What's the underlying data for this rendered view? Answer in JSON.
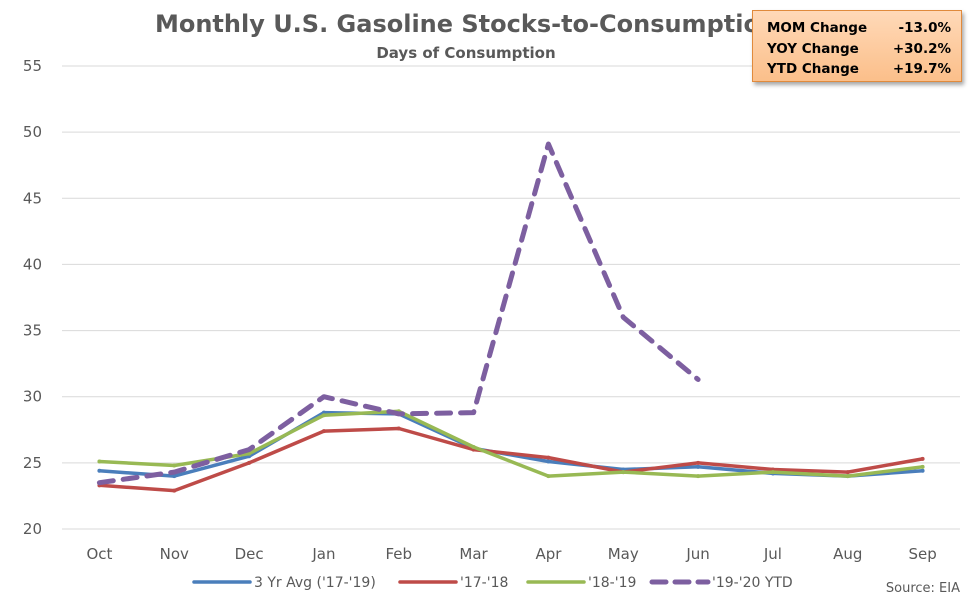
{
  "chart_data": {
    "type": "line",
    "title": "Monthly U.S. Gasoline Stocks-to-Consumption",
    "subtitle": "Days of Consumption",
    "xlabel": "",
    "ylabel": "",
    "categories": [
      "Oct",
      "Nov",
      "Dec",
      "Jan",
      "Feb",
      "Mar",
      "Apr",
      "May",
      "Jun",
      "Jul",
      "Aug",
      "Sep"
    ],
    "ylim": [
      20,
      55
    ],
    "yticks": [
      20,
      25,
      30,
      35,
      40,
      45,
      50,
      55
    ],
    "grid": true,
    "legend_position": "bottom",
    "series": [
      {
        "name": "3 Yr Avg ('17-'19)",
        "color": "#4a7ebb",
        "style": "solid",
        "values": [
          24.4,
          24.0,
          25.5,
          28.8,
          28.7,
          26.1,
          25.1,
          24.5,
          24.7,
          24.2,
          24.0,
          24.4
        ]
      },
      {
        "name": "'17-'18",
        "color": "#be4b48",
        "style": "solid",
        "values": [
          23.3,
          22.9,
          25.0,
          27.4,
          27.6,
          26.0,
          25.4,
          24.3,
          25.0,
          24.5,
          24.3,
          25.3
        ]
      },
      {
        "name": "'18-'19",
        "color": "#98b954",
        "style": "solid",
        "values": [
          25.1,
          24.8,
          25.7,
          28.6,
          28.9,
          26.2,
          24.0,
          24.3,
          24.0,
          24.3,
          24.0,
          24.7
        ]
      },
      {
        "name": "'19-'20 YTD",
        "color": "#7d5fa0",
        "style": "dashed",
        "values": [
          23.5,
          24.3,
          26.0,
          30.0,
          28.7,
          28.8,
          49.1,
          36.0,
          31.3,
          null,
          null,
          null
        ]
      }
    ],
    "source": "Source: EIA"
  },
  "stats": [
    {
      "label": "MOM Change",
      "value": "-13.0%"
    },
    {
      "label": "YOY Change",
      "value": "+30.2%"
    },
    {
      "label": "YTD Change",
      "value": "+19.7%"
    }
  ]
}
